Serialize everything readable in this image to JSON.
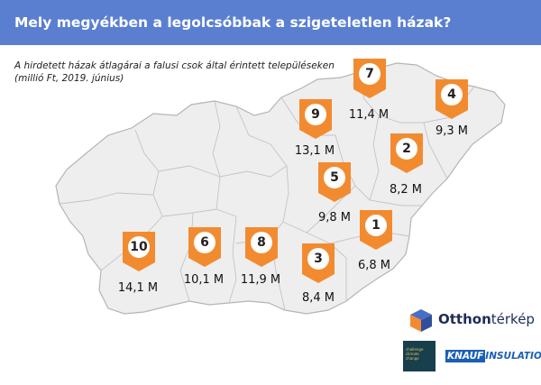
{
  "header": {
    "title": "Mely megyékben a legolcsóbbak a szigeteletlen házak?"
  },
  "subtitle": {
    "line1": "A hirdetett házak átlagárai a falusi csok által érintett településeken",
    "line2": "(millió Ft, 2019. június)"
  },
  "colors": {
    "header": "#5b7fd0",
    "marker": "#f28b30",
    "map_fill": "#eeeeee",
    "map_border": "#b5b5b5"
  },
  "regions": [
    {
      "rank": "7",
      "value": "11,4 M"
    },
    {
      "rank": "4",
      "value": "9,3 M"
    },
    {
      "rank": "9",
      "value": "13,1 M"
    },
    {
      "rank": "2",
      "value": "8,2 M"
    },
    {
      "rank": "5",
      "value": "9,8 M"
    },
    {
      "rank": "1",
      "value": "6,8 M"
    },
    {
      "rank": "10",
      "value": "14,1 M"
    },
    {
      "rank": "6",
      "value": "10,1 M"
    },
    {
      "rank": "8",
      "value": "11,9 M"
    },
    {
      "rank": "3",
      "value": "8,4 M"
    }
  ],
  "brand": {
    "name_bold": "Otthon",
    "name_light": "térkép"
  },
  "challenge_logo": {
    "line1": "challenge",
    "line2": "climate",
    "line3": "change"
  },
  "knauf": {
    "part1": "KNAUF",
    "part2": "INSULATION"
  }
}
